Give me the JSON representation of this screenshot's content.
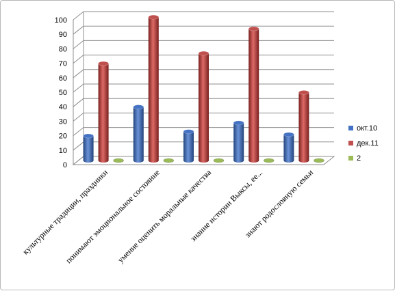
{
  "chart_data": {
    "type": "bar",
    "style": "3d-cylinder",
    "categories": [
      "культурные традиции, праздники",
      "понимают эмоциональное состояние",
      "умение оценить моральные качества",
      "знание истории Выксы, ее...",
      "знают родословную семьи"
    ],
    "series": [
      {
        "name": "окт.10",
        "color": "#4472c4",
        "values": [
          17,
          37,
          20,
          26,
          18
        ]
      },
      {
        "name": "дек.11",
        "color": "#c0504d",
        "values": [
          67,
          99,
          74,
          91,
          47
        ]
      },
      {
        "name": "2",
        "color": "#9bbb59",
        "values": [
          0,
          0,
          0,
          0,
          0
        ]
      }
    ],
    "ylim": [
      0,
      100
    ],
    "yticks": [
      0,
      10,
      20,
      30,
      40,
      50,
      60,
      70,
      80,
      90,
      100
    ],
    "grid": true,
    "legend_position": "right",
    "title": "",
    "xlabel": "",
    "ylabel": ""
  }
}
